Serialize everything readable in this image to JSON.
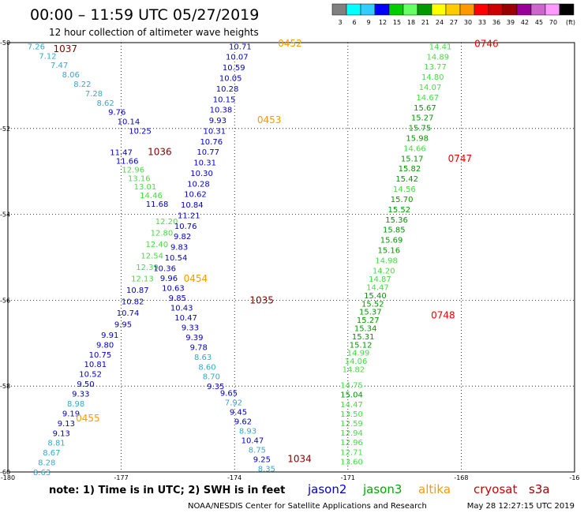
{
  "header": {
    "title": "00:00 – 11:59 UTC 05/27/2019",
    "subtitle": "12 hour collection of altimeter wave heights"
  },
  "footer": {
    "note": "note:  1) Time is in UTC;  2) SWH is in feet",
    "credit": "NOAA/NESDIS Center for Satellite Applications and Research",
    "timestamp": "May 28 12:27:15 UTC 2019"
  },
  "satellites": [
    {
      "name": "jason2",
      "color": "#0000cc"
    },
    {
      "name": "jason3",
      "color": "#00aa00"
    },
    {
      "name": "altika",
      "color": "#ff9900"
    },
    {
      "name": "cryosat",
      "color": "#cc0000"
    },
    {
      "name": "s3a",
      "color": "#990000"
    }
  ],
  "legend": {
    "unit": "(ft)",
    "bins": [
      {
        "label": "3",
        "color": "#808080"
      },
      {
        "label": "6",
        "color": "#00ffff"
      },
      {
        "label": "9",
        "color": "#33ccff"
      },
      {
        "label": "12",
        "color": "#0000ff"
      },
      {
        "label": "15",
        "color": "#00cc00"
      },
      {
        "label": "18",
        "color": "#66ff66"
      },
      {
        "label": "21",
        "color": "#009900"
      },
      {
        "label": "24",
        "color": "#ffff00"
      },
      {
        "label": "27",
        "color": "#ffcc00"
      },
      {
        "label": "30",
        "color": "#ff9900"
      },
      {
        "label": "33",
        "color": "#ff0000"
      },
      {
        "label": "36",
        "color": "#cc0000"
      },
      {
        "label": "39",
        "color": "#990000"
      },
      {
        "label": "42",
        "color": "#990099"
      },
      {
        "label": "45",
        "color": "#cc66cc"
      },
      {
        "label": "70",
        "color": "#ff99ff"
      },
      {
        "label": "",
        "color": "#000000"
      }
    ]
  },
  "chart_data": {
    "type": "scatter",
    "xlim": [
      -180,
      -165
    ],
    "ylim": [
      -60,
      -50
    ],
    "x_ticks": [
      "-180",
      "-177",
      "-174",
      "-171",
      "-168",
      "-16"
    ],
    "y_ticks": [
      "-50",
      "-52",
      "-54",
      "-56",
      "-58",
      "-60"
    ],
    "grid": true,
    "color_ramp": [
      {
        "max": 9,
        "color": "#33aacc"
      },
      {
        "max": 12,
        "color": "#0000cc"
      },
      {
        "max": 15,
        "color": "#44dd44"
      },
      {
        "max": 99,
        "color": "#009900"
      }
    ],
    "tracks": [
      {
        "x0": -179.25,
        "x1": -176.5,
        "y0": -50.08,
        "y1": -52.05,
        "values": [
          "7.26",
          "7.12",
          "7.47",
          "8.06",
          "8.22",
          "7.28",
          "8.62",
          "9.76",
          "10.14",
          "10.25"
        ]
      },
      {
        "x0": -177.0,
        "x1": -176.05,
        "y0": -52.55,
        "y1": -53.75,
        "values": [
          "11.47",
          "11.66",
          "12.96",
          "13.16",
          "13.01",
          "14.46",
          "11.68"
        ]
      },
      {
        "x0": -175.8,
        "x1": -176.95,
        "y0": -54.15,
        "y1": -56.55,
        "values": [
          "12.20",
          "12.80",
          "12.40",
          "12.54",
          "12.39",
          "12.13",
          "10.87",
          "10.82",
          "10.74",
          "9.95"
        ]
      },
      {
        "x0": -177.3,
        "x1": -179.1,
        "y0": -56.8,
        "y1": -60.0,
        "values": [
          "9.91",
          "9.80",
          "10.75",
          "10.81",
          "10.52",
          "9.50",
          "9.33",
          "8.98",
          "9.19",
          "9.13",
          "9.13",
          "8.81",
          "8.67",
          "8.28",
          "8.63"
        ]
      },
      {
        "x0": -173.85,
        "x1": -175.55,
        "y0": -50.08,
        "y1": -55.0,
        "values": [
          "10.71",
          "10.07",
          "10.59",
          "10.05",
          "10.28",
          "10.15",
          "10.38",
          "9.93",
          "10.31",
          "10.76",
          "10.77",
          "10.31",
          "10.30",
          "10.28",
          "10.62",
          "10.84",
          "11.21",
          "10.76",
          "9.82",
          "9.83",
          "10.54"
        ]
      },
      {
        "x0": -175.85,
        "x1": -174.5,
        "y0": -55.25,
        "y1": -58.0,
        "values": [
          "10.36",
          "9.96",
          "10.63",
          "9.85",
          "10.43",
          "10.47",
          "9.33",
          "9.39",
          "9.78",
          "8.63",
          "8.60",
          "8.70",
          "9.35"
        ]
      },
      {
        "x0": -174.15,
        "x1": -173.15,
        "y0": -58.15,
        "y1": -59.92,
        "values": [
          "9.65",
          "7.92",
          "9.45",
          "9.62",
          "8.93",
          "10.47",
          "8.75",
          "9.25",
          "8.35"
        ]
      },
      {
        "x0": -168.55,
        "x1": -170.05,
        "y0": -50.08,
        "y1": -55.3,
        "values": [
          "14.41",
          "14.89",
          "13.77",
          "14.80",
          "14.07",
          "14.67",
          "15.67",
          "15.27",
          "15.75",
          "15.98",
          "14.66",
          "15.17",
          "15.82",
          "15.42",
          "14.56",
          "15.70",
          "15.52",
          "15.36",
          "15.85",
          "15.69",
          "15.16",
          "14.98",
          "14.20"
        ]
      },
      {
        "x0": -170.15,
        "x1": -170.85,
        "y0": -55.5,
        "y1": -57.6,
        "values": [
          "14.87",
          "14.47",
          "15.40",
          "15.52",
          "15.37",
          "15.27",
          "15.34",
          "15.31",
          "15.12",
          "14.99",
          "14.06",
          "14.82"
        ]
      },
      {
        "x0": -170.9,
        "x1": -170.9,
        "y0": -57.97,
        "y1": -59.75,
        "values": [
          "14.75",
          "15.04",
          "14.47",
          "13.50",
          "12.59",
          "12.94",
          "12.96",
          "12.71",
          "13.60"
        ]
      }
    ],
    "time_labels": [
      {
        "text": "1037",
        "x": -178.8,
        "y": -50.15,
        "color": "#880000"
      },
      {
        "text": "1036",
        "x": -176.3,
        "y": -52.55,
        "color": "#880000"
      },
      {
        "text": "1035",
        "x": -173.6,
        "y": -56.0,
        "color": "#880000"
      },
      {
        "text": "1034",
        "x": -172.6,
        "y": -59.7,
        "color": "#880000"
      },
      {
        "text": "0452",
        "x": -172.85,
        "y": -50.02,
        "color": "#ff9900"
      },
      {
        "text": "0453",
        "x": -173.4,
        "y": -51.8,
        "color": "#ff9900"
      },
      {
        "text": "0454",
        "x": -175.35,
        "y": -55.5,
        "color": "#ff9900"
      },
      {
        "text": "0455",
        "x": -178.2,
        "y": -58.75,
        "color": "#ff9900"
      },
      {
        "text": "0746",
        "x": -167.65,
        "y": -50.03,
        "color": "#ee0000"
      },
      {
        "text": "0747",
        "x": -168.35,
        "y": -52.7,
        "color": "#ee0000"
      },
      {
        "text": "0748",
        "x": -168.8,
        "y": -56.35,
        "color": "#ee0000"
      }
    ]
  }
}
